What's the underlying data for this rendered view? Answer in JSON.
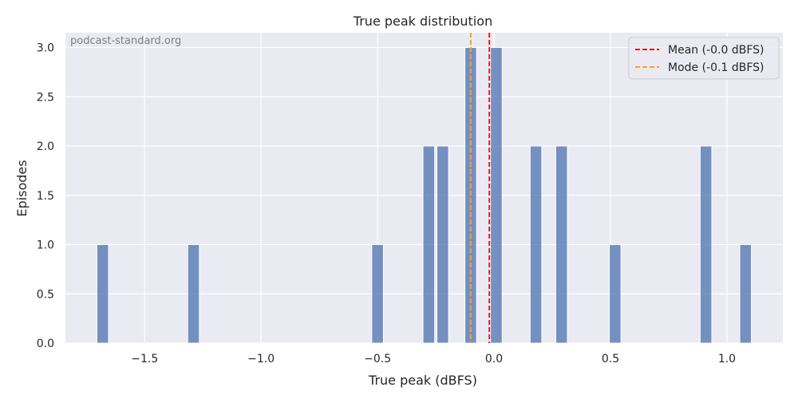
{
  "chart_data": {
    "type": "bar",
    "title": "True peak distribution",
    "xlabel": "True peak (dBFS)",
    "ylabel": "Episodes",
    "watermark": "podcast-standard.org",
    "xlim": [
      -1.84,
      1.24
    ],
    "ylim": [
      0,
      3.15
    ],
    "bin_width": 0.05,
    "bins": [
      {
        "x": -1.68,
        "count": 1
      },
      {
        "x": -1.29,
        "count": 1
      },
      {
        "x": -0.5,
        "count": 1
      },
      {
        "x": -0.28,
        "count": 2
      },
      {
        "x": -0.22,
        "count": 2
      },
      {
        "x": -0.1,
        "count": 3
      },
      {
        "x": 0.01,
        "count": 3
      },
      {
        "x": 0.18,
        "count": 2
      },
      {
        "x": 0.29,
        "count": 2
      },
      {
        "x": 0.52,
        "count": 1
      },
      {
        "x": 0.91,
        "count": 2
      },
      {
        "x": 1.08,
        "count": 1
      }
    ],
    "x_ticks": [
      {
        "value": -1.5,
        "label": "−1.5"
      },
      {
        "value": -1.0,
        "label": "−1.0"
      },
      {
        "value": -0.5,
        "label": "−0.5"
      },
      {
        "value": 0.0,
        "label": "0.0"
      },
      {
        "value": 0.5,
        "label": "0.5"
      },
      {
        "value": 1.0,
        "label": "1.0"
      }
    ],
    "y_ticks": [
      {
        "value": 0.0,
        "label": "0.0"
      },
      {
        "value": 0.5,
        "label": "0.5"
      },
      {
        "value": 1.0,
        "label": "1.0"
      },
      {
        "value": 1.5,
        "label": "1.5"
      },
      {
        "value": 2.0,
        "label": "2.0"
      },
      {
        "value": 2.5,
        "label": "2.5"
      },
      {
        "value": 3.0,
        "label": "3.0"
      }
    ],
    "reference_lines": [
      {
        "name": "Mean (-0.0 dBFS)",
        "x": -0.02,
        "color": "#e31a1c"
      },
      {
        "name": "Mode (-0.1 dBFS)",
        "x": -0.1,
        "color": "#ff9f1c"
      }
    ],
    "bar_color": "#4c72b0",
    "background_color": "#eaeaf2",
    "grid": true,
    "legend_position": "top-right"
  }
}
